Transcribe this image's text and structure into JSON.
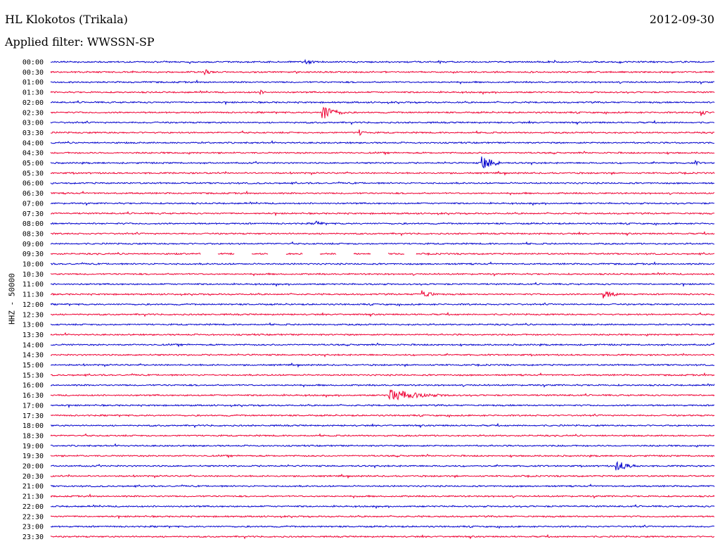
{
  "header": {
    "station": "HL Klokotos (Trikala)",
    "date": "2012-09-30",
    "filter": "Applied filter: WWSSN-SP"
  },
  "chart_data": {
    "type": "line",
    "title": "HL Klokotos (Trikala)",
    "ylabel": "HHZ - 50000",
    "xlabel": "",
    "row_labels": [
      "00:00",
      "00:30",
      "01:00",
      "01:30",
      "02:00",
      "02:30",
      "03:00",
      "03:30",
      "04:00",
      "04:30",
      "05:00",
      "05:30",
      "06:00",
      "06:30",
      "07:00",
      "07:30",
      "08:00",
      "08:30",
      "09:00",
      "09:30",
      "10:00",
      "10:30",
      "11:00",
      "11:30",
      "12:00",
      "12:30",
      "13:00",
      "13:30",
      "14:00",
      "14:30",
      "15:00",
      "15:30",
      "16:00",
      "16:30",
      "17:00",
      "17:30",
      "18:00",
      "18:30",
      "19:00",
      "19:30",
      "20:00",
      "20:30",
      "21:00",
      "21:30",
      "22:00",
      "22:30",
      "23:00",
      "23:30"
    ],
    "row_colors": [
      "#0000cc",
      "#ee0033"
    ],
    "events": [
      {
        "row": "00:00",
        "minute": 11.5,
        "amplitude": 4,
        "duration": 1.2
      },
      {
        "row": "00:30",
        "minute": 7.0,
        "amplitude": 4,
        "duration": 0.8
      },
      {
        "row": "01:30",
        "minute": 9.5,
        "amplitude": 3,
        "duration": 0.8
      },
      {
        "row": "02:30",
        "minute": 12.3,
        "amplitude": 12,
        "duration": 1.6
      },
      {
        "row": "02:30",
        "minute": 29.4,
        "amplitude": 5,
        "duration": 0.8
      },
      {
        "row": "03:30",
        "minute": 14.0,
        "amplitude": 4,
        "duration": 0.9
      },
      {
        "row": "05:00",
        "minute": 19.5,
        "amplitude": 12,
        "duration": 1.4
      },
      {
        "row": "05:00",
        "minute": 29.1,
        "amplitude": 4,
        "duration": 0.6
      },
      {
        "row": "08:00",
        "minute": 12.0,
        "amplitude": 5,
        "duration": 0.7
      },
      {
        "row": "11:30",
        "minute": 16.8,
        "amplitude": 7,
        "duration": 1.2
      },
      {
        "row": "11:30",
        "minute": 25.0,
        "amplitude": 6,
        "duration": 1.6
      },
      {
        "row": "16:30",
        "minute": 15.3,
        "amplitude": 9,
        "duration": 4.0
      },
      {
        "row": "20:00",
        "minute": 25.6,
        "amplitude": 8,
        "duration": 1.5
      }
    ],
    "gaps": [
      {
        "row": "09:30",
        "from_minute": 6.0,
        "to_minute": 16.5
      }
    ],
    "xlim": [
      0,
      30
    ]
  }
}
